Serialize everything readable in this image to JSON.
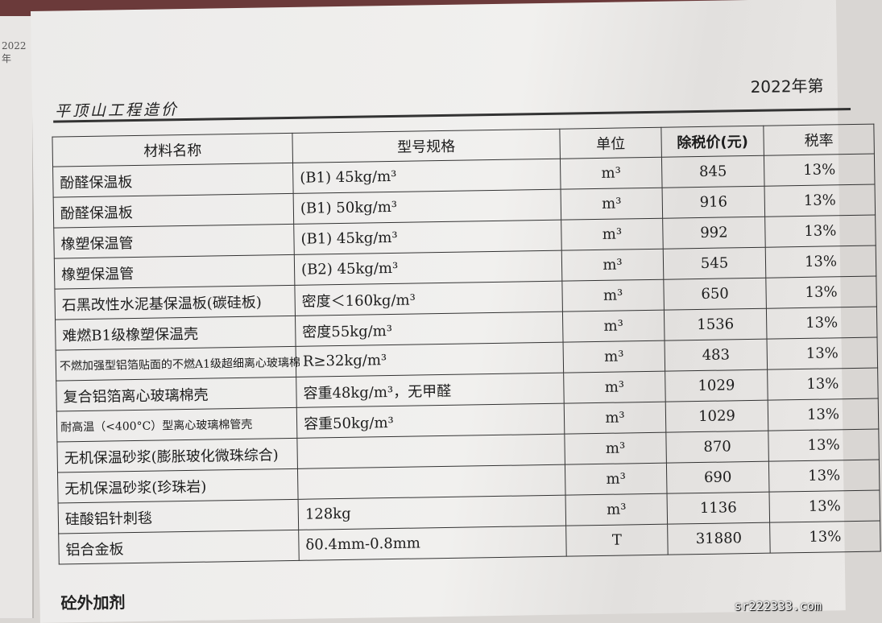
{
  "left_page": {
    "snippet": "2022年"
  },
  "header": {
    "publication": "平顶山工程造价",
    "issue": "2022年第"
  },
  "table": {
    "columns": [
      "材料名称",
      "型号规格",
      "单位",
      "除税价(元)",
      "税率"
    ],
    "rows": [
      {
        "name": "酚醛保温板",
        "spec": "(B1) 45kg/m³",
        "unit": "m³",
        "price": "845",
        "tax": "13%"
      },
      {
        "name": "酚醛保温板",
        "spec": "(B1) 50kg/m³",
        "unit": "m³",
        "price": "916",
        "tax": "13%"
      },
      {
        "name": "橡塑保温管",
        "spec": "(B1) 45kg/m³",
        "unit": "m³",
        "price": "992",
        "tax": "13%"
      },
      {
        "name": "橡塑保温管",
        "spec": "(B2) 45kg/m³",
        "unit": "m³",
        "price": "545",
        "tax": "13%"
      },
      {
        "name": "石黑改性水泥基保温板(碳硅板)",
        "spec": "密度＜160kg/m³",
        "unit": "m³",
        "price": "650",
        "tax": "13%"
      },
      {
        "name": "难燃B1级橡塑保温壳",
        "spec": "密度55kg/m³",
        "unit": "m³",
        "price": "1536",
        "tax": "13%"
      },
      {
        "name": "不燃加强型铝箔贴面的不燃A1级超细离心玻璃棉",
        "spec": "R≥32kg/m³",
        "unit": "m³",
        "price": "483",
        "tax": "13%"
      },
      {
        "name": "复合铝箔离心玻璃棉壳",
        "spec": "容重48kg/m³，无甲醛",
        "unit": "m³",
        "price": "1029",
        "tax": "13%"
      },
      {
        "name": "耐高温（<400°C）型离心玻璃棉管壳",
        "spec": "容重50kg/m³",
        "unit": "m³",
        "price": "1029",
        "tax": "13%"
      },
      {
        "name": "无机保温砂浆(膨胀玻化微珠综合)",
        "spec": "",
        "unit": "m³",
        "price": "870",
        "tax": "13%"
      },
      {
        "name": "无机保温砂浆(珍珠岩)",
        "spec": "",
        "unit": "m³",
        "price": "690",
        "tax": "13%"
      },
      {
        "name": "硅酸铝针刺毯",
        "spec": "128kg",
        "unit": "m³",
        "price": "1136",
        "tax": "13%"
      },
      {
        "name": "铝合金板",
        "spec": "δ0.4mm-0.8mm",
        "unit": "T",
        "price": "31880",
        "tax": "13%"
      }
    ]
  },
  "section": "砼外加剂",
  "watermark": "sr222333.com"
}
